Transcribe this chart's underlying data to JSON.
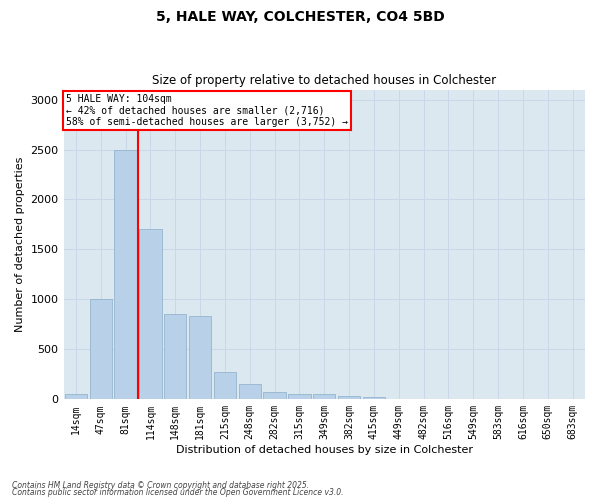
{
  "title1": "5, HALE WAY, COLCHESTER, CO4 5BD",
  "title2": "Size of property relative to detached houses in Colchester",
  "xlabel": "Distribution of detached houses by size in Colchester",
  "ylabel": "Number of detached properties",
  "categories": [
    "14sqm",
    "47sqm",
    "81sqm",
    "114sqm",
    "148sqm",
    "181sqm",
    "215sqm",
    "248sqm",
    "282sqm",
    "315sqm",
    "349sqm",
    "382sqm",
    "415sqm",
    "449sqm",
    "482sqm",
    "516sqm",
    "549sqm",
    "583sqm",
    "616sqm",
    "650sqm",
    "683sqm"
  ],
  "values": [
    50,
    1000,
    2500,
    1700,
    850,
    830,
    270,
    150,
    70,
    55,
    50,
    30,
    20,
    5,
    2,
    1,
    1,
    0,
    0,
    0,
    0
  ],
  "bar_color": "#b8d0e8",
  "bar_edge_color": "#8aaec8",
  "red_line_label": "5 HALE WAY: 104sqm",
  "annotation_line1": "← 42% of detached houses are smaller (2,716)",
  "annotation_line2": "58% of semi-detached houses are larger (3,752) →",
  "annotation_box_color": "white",
  "annotation_box_edge": "red",
  "grid_color": "#c8d8e8",
  "bg_color": "#dce8f0",
  "ylim": [
    0,
    3100
  ],
  "yticks": [
    0,
    500,
    1000,
    1500,
    2000,
    2500,
    3000
  ],
  "footer1": "Contains HM Land Registry data © Crown copyright and database right 2025.",
  "footer2": "Contains public sector information licensed under the Open Government Licence v3.0."
}
